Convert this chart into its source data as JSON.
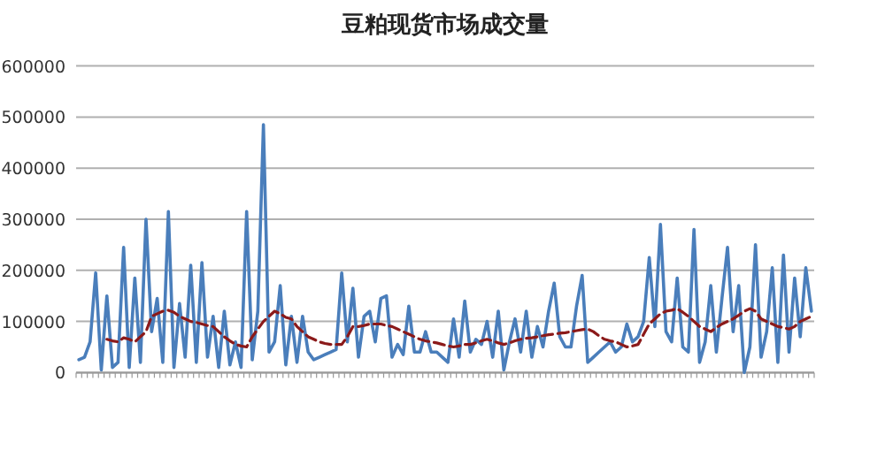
{
  "chart_data": {
    "type": "line",
    "title": "豆粕现货市场成交量",
    "ylim": [
      0,
      600000
    ],
    "yticks": [
      0,
      100000,
      200000,
      300000,
      400000,
      500000,
      600000
    ],
    "grid": "y",
    "tick_labels": "y",
    "marker": "none",
    "categories": [
      null,
      null,
      null,
      null,
      null,
      null,
      null,
      null,
      null,
      null,
      null,
      null,
      null,
      null,
      null,
      null,
      null,
      null,
      null,
      null,
      null,
      null,
      null,
      null,
      null,
      null,
      null,
      null,
      null,
      null,
      null,
      null,
      null,
      null,
      null,
      null,
      null,
      null,
      null,
      null,
      null,
      null,
      null,
      null,
      null,
      null,
      null,
      null,
      null,
      null,
      null,
      null,
      null,
      null,
      null,
      null,
      null,
      null,
      null,
      null,
      null,
      null,
      null,
      null,
      null,
      null,
      null,
      null,
      null,
      null,
      null,
      null,
      null,
      null,
      null,
      null,
      null,
      null,
      null,
      null,
      null,
      null,
      null,
      null,
      null,
      null,
      null,
      null,
      null,
      null,
      null,
      null,
      null,
      null,
      null,
      null,
      null,
      null,
      null,
      null,
      null,
      null,
      null,
      null,
      null,
      null,
      null,
      null,
      null,
      null,
      null,
      null,
      null,
      null,
      null,
      null,
      null,
      null,
      null,
      null,
      null,
      null,
      null,
      null,
      null,
      null,
      null,
      null,
      null,
      null,
      null,
      null
    ],
    "series": [
      {
        "color": "#4a7ebb",
        "line_style": "solid",
        "values": [
          25000,
          30000,
          60000,
          195000,
          5000,
          150000,
          10000,
          20000,
          245000,
          10000,
          185000,
          20000,
          300000,
          80000,
          145000,
          20000,
          315000,
          10000,
          135000,
          30000,
          210000,
          20000,
          215000,
          30000,
          110000,
          10000,
          120000,
          15000,
          60000,
          10000,
          315000,
          25000,
          120000,
          485000,
          40000,
          60000,
          170000,
          15000,
          110000,
          20000,
          110000,
          40000,
          25000,
          30000,
          35000,
          40000,
          45000,
          195000,
          60000,
          165000,
          30000,
          110000,
          120000,
          60000,
          145000,
          150000,
          30000,
          55000,
          35000,
          130000,
          40000,
          40000,
          80000,
          40000,
          40000,
          30000,
          20000,
          105000,
          30000,
          140000,
          40000,
          65000,
          55000,
          100000,
          30000,
          120000,
          5000,
          60000,
          105000,
          40000,
          120000,
          30000,
          90000,
          50000,
          120000,
          175000,
          70000,
          50000,
          50000,
          130000,
          190000,
          20000,
          30000,
          40000,
          50000,
          60000,
          40000,
          50000,
          95000,
          60000,
          70000,
          100000,
          225000,
          90000,
          290000,
          80000,
          60000,
          185000,
          50000,
          40000,
          280000,
          20000,
          60000,
          170000,
          40000,
          145000,
          245000,
          80000,
          170000,
          0,
          50000,
          250000,
          30000,
          80000,
          205000,
          20000,
          230000,
          40000,
          185000,
          70000,
          205000,
          120000
        ]
      },
      {
        "color": "#8b1a1a",
        "line_style": "dashed",
        "values": [
          null,
          null,
          null,
          null,
          null,
          65000,
          62000,
          60000,
          68000,
          65000,
          60000,
          70000,
          80000,
          110000,
          115000,
          120000,
          122000,
          118000,
          110000,
          105000,
          100000,
          98000,
          95000,
          92000,
          90000,
          80000,
          70000,
          62000,
          55000,
          52000,
          50000,
          70000,
          85000,
          100000,
          110000,
          120000,
          115000,
          108000,
          105000,
          90000,
          80000,
          70000,
          65000,
          60000,
          57000,
          55000,
          55000,
          55000,
          70000,
          90000,
          90000,
          92000,
          95000,
          95000,
          95000,
          92000,
          90000,
          85000,
          80000,
          75000,
          70000,
          65000,
          62000,
          60000,
          58000,
          55000,
          52000,
          50000,
          52000,
          55000,
          55000,
          58000,
          62000,
          65000,
          62000,
          58000,
          55000,
          58000,
          62000,
          65000,
          67000,
          68000,
          70000,
          72000,
          74000,
          75000,
          77000,
          78000,
          80000,
          82000,
          84000,
          85000,
          80000,
          72000,
          65000,
          62000,
          60000,
          55000,
          50000,
          52000,
          55000,
          75000,
          95000,
          105000,
          115000,
          120000,
          122000,
          125000,
          118000,
          110000,
          100000,
          90000,
          85000,
          80000,
          88000,
          95000,
          100000,
          105000,
          112000,
          120000,
          125000,
          120000,
          105000,
          100000,
          95000,
          90000,
          88000,
          85000,
          90000,
          100000,
          105000,
          110000
        ]
      }
    ]
  }
}
